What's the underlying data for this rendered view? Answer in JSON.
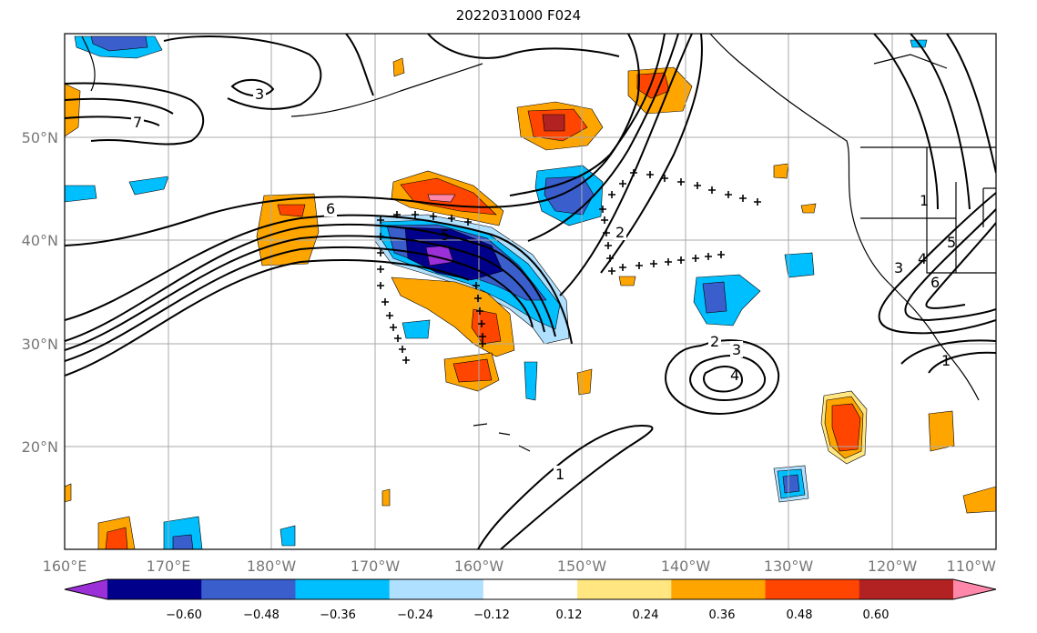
{
  "title": "2022031000 F024",
  "lon_ticks": [
    "160°E",
    "170°E",
    "180°W",
    "170°W",
    "160°W",
    "150°W",
    "140°W",
    "130°W",
    "120°W",
    "110°W"
  ],
  "lat_ticks": [
    "50°N",
    "40°N",
    "30°N",
    "20°N"
  ],
  "colorbar": {
    "colors": [
      "#9b30d9",
      "#00008b",
      "#3a5fcd",
      "#00bfff",
      "#b0e0ff",
      "#ffffff",
      "#ffe680",
      "#ffa500",
      "#ff4500",
      "#b22222",
      "#ff88aa"
    ],
    "labels": [
      "−0.60",
      "−0.48",
      "−0.36",
      "−0.24",
      "−0.12",
      "0.12",
      "0.24",
      "0.36",
      "0.48",
      "0.60"
    ]
  },
  "contour_labels": [
    "3",
    "7",
    "6",
    "5",
    "2",
    "2",
    "3",
    "4",
    "1",
    "5",
    "6",
    "3",
    "4",
    "1",
    "1"
  ]
}
